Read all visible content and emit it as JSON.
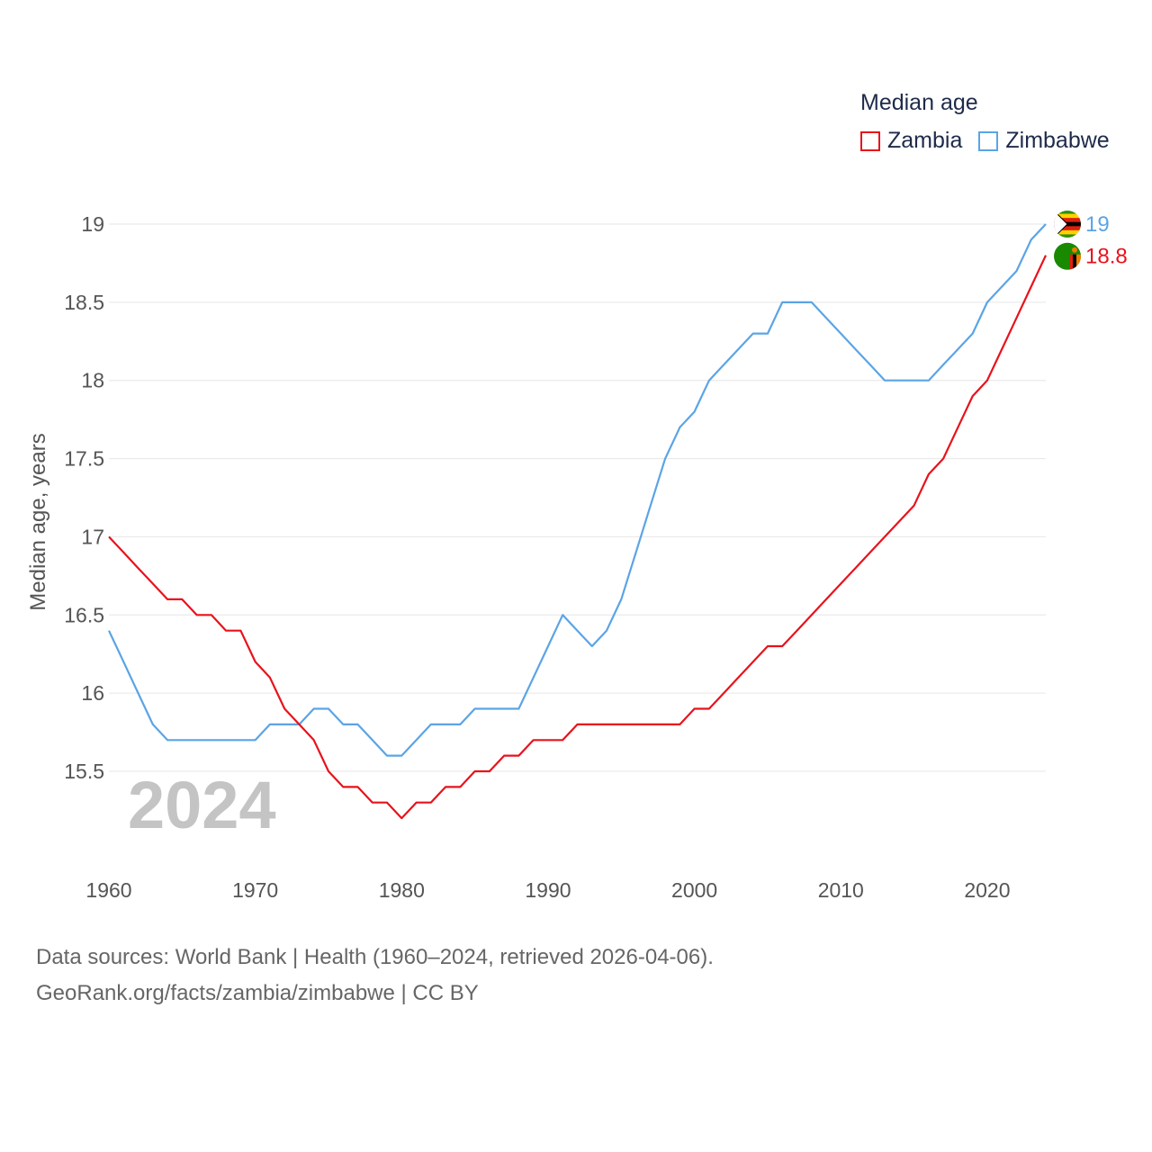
{
  "chart_data": {
    "type": "line",
    "title": "Median age",
    "ylabel": "Median age, years",
    "xlabel": "",
    "xlim": [
      1960,
      2024
    ],
    "ylim": [
      15,
      19.3
    ],
    "yticks": [
      15.5,
      16,
      16.5,
      17,
      17.5,
      18,
      18.5,
      19
    ],
    "ytick_labels": [
      "15.5",
      "16",
      "16.5",
      "17",
      "17.5",
      "18",
      "18.5",
      "19"
    ],
    "xticks": [
      1960,
      1970,
      1980,
      1990,
      2000,
      2010,
      2020
    ],
    "xtick_labels": [
      "1960",
      "1970",
      "1980",
      "1990",
      "2000",
      "2010",
      "2020"
    ],
    "grid": true,
    "legend_position": "top-right",
    "current_year": "2024",
    "x": [
      1960,
      1961,
      1962,
      1963,
      1964,
      1965,
      1966,
      1967,
      1968,
      1969,
      1970,
      1971,
      1972,
      1973,
      1974,
      1975,
      1976,
      1977,
      1978,
      1979,
      1980,
      1981,
      1982,
      1983,
      1984,
      1985,
      1986,
      1987,
      1988,
      1989,
      1990,
      1991,
      1992,
      1993,
      1994,
      1995,
      1996,
      1997,
      1998,
      1999,
      2000,
      2001,
      2002,
      2003,
      2004,
      2005,
      2006,
      2007,
      2008,
      2009,
      2010,
      2011,
      2012,
      2013,
      2014,
      2015,
      2016,
      2017,
      2018,
      2019,
      2020,
      2021,
      2022,
      2023,
      2024
    ],
    "series": [
      {
        "name": "Zambia",
        "color": "#e8121b",
        "end_label": "18.8",
        "flag_icon": "zambia-flag-icon",
        "values": [
          17.0,
          16.9,
          16.8,
          16.7,
          16.6,
          16.6,
          16.5,
          16.5,
          16.4,
          16.4,
          16.2,
          16.1,
          15.9,
          15.8,
          15.7,
          15.5,
          15.4,
          15.4,
          15.3,
          15.3,
          15.2,
          15.3,
          15.3,
          15.4,
          15.4,
          15.5,
          15.5,
          15.6,
          15.6,
          15.7,
          15.7,
          15.7,
          15.8,
          15.8,
          15.8,
          15.8,
          15.8,
          15.8,
          15.8,
          15.8,
          15.9,
          15.9,
          16.0,
          16.1,
          16.2,
          16.3,
          16.3,
          16.4,
          16.5,
          16.6,
          16.7,
          16.8,
          16.9,
          17.0,
          17.1,
          17.2,
          17.4,
          17.5,
          17.7,
          17.9,
          18.0,
          18.2,
          18.4,
          18.6,
          18.8
        ]
      },
      {
        "name": "Zimbabwe",
        "color": "#5ba4e5",
        "end_label": "19",
        "flag_icon": "zimbabwe-flag-icon",
        "values": [
          16.4,
          16.2,
          16.0,
          15.8,
          15.7,
          15.7,
          15.7,
          15.7,
          15.7,
          15.7,
          15.7,
          15.8,
          15.8,
          15.8,
          15.9,
          15.9,
          15.8,
          15.8,
          15.7,
          15.6,
          15.6,
          15.7,
          15.8,
          15.8,
          15.8,
          15.9,
          15.9,
          15.9,
          15.9,
          16.1,
          16.3,
          16.5,
          16.4,
          16.3,
          16.4,
          16.6,
          16.9,
          17.2,
          17.5,
          17.7,
          17.8,
          18.0,
          18.1,
          18.2,
          18.3,
          18.3,
          18.5,
          18.5,
          18.5,
          18.4,
          18.3,
          18.2,
          18.1,
          18.0,
          18.0,
          18.0,
          18.0,
          18.1,
          18.2,
          18.3,
          18.5,
          18.6,
          18.7,
          18.9,
          19.0
        ]
      }
    ]
  },
  "legend": {
    "title": "Median age"
  },
  "footer": {
    "line1": "Data sources: World Bank | Health (1960–2024, retrieved 2026-04-06).",
    "line2": "GeoRank.org/facts/zambia/zimbabwe | CC BY"
  }
}
